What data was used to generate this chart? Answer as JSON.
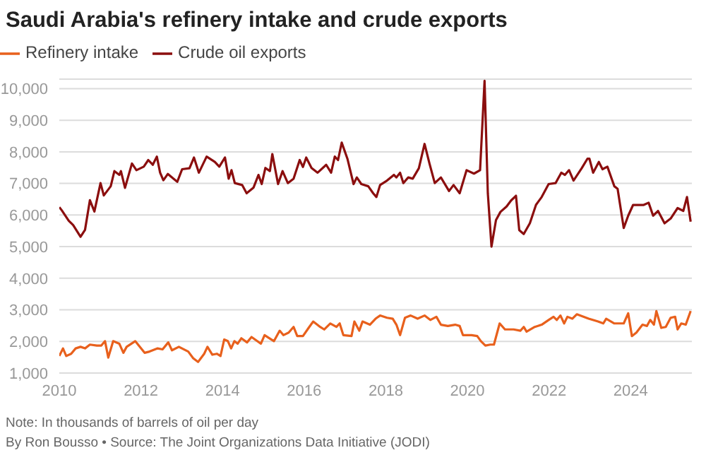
{
  "chart_data": {
    "type": "line",
    "title": "Saudi Arabia's refinery intake and crude exports",
    "xlim": [
      2010,
      2025.5
    ],
    "xticks": [
      2010,
      2012,
      2014,
      2016,
      2018,
      2020,
      2022,
      2024
    ],
    "ylim": [
      1000,
      10300
    ],
    "yticks": [
      {
        "value": 1000,
        "label": "1,000"
      },
      {
        "value": 2000,
        "label": "2,000"
      },
      {
        "value": 3000,
        "label": "3,000"
      },
      {
        "value": 4000,
        "label": "4,000"
      },
      {
        "value": 5000,
        "label": "5,000"
      },
      {
        "value": 6000,
        "label": "6,000"
      },
      {
        "value": 7000,
        "label": "7,000"
      },
      {
        "value": 8000,
        "label": "8,000"
      },
      {
        "value": 9000,
        "label": "9,000"
      },
      {
        "value": 10000,
        "label": "10,000"
      }
    ],
    "grid": "y",
    "legend": "top left",
    "marker": "none",
    "line_style": "solid",
    "series": [
      {
        "name": "Refinery intake",
        "color": "#e8601c",
        "x": [
          2010.0,
          2010.09,
          2010.17,
          2010.29,
          2010.4,
          2010.52,
          2010.63,
          2010.75,
          2010.92,
          2011.03,
          2011.12,
          2011.2,
          2011.32,
          2011.47,
          2011.57,
          2011.65,
          2011.86,
          2012.09,
          2012.21,
          2012.41,
          2012.53,
          2012.67,
          2012.76,
          2012.93,
          2013.16,
          2013.28,
          2013.4,
          2013.55,
          2013.63,
          2013.75,
          2013.86,
          2013.95,
          2014.04,
          2014.13,
          2014.21,
          2014.29,
          2014.37,
          2014.46,
          2014.6,
          2014.71,
          2014.85,
          2014.94,
          2015.03,
          2015.15,
          2015.26,
          2015.4,
          2015.49,
          2015.62,
          2015.74,
          2015.83,
          2015.97,
          2016.11,
          2016.22,
          2016.37,
          2016.49,
          2016.64,
          2016.79,
          2016.87,
          2016.96,
          2017.16,
          2017.23,
          2017.35,
          2017.43,
          2017.61,
          2017.75,
          2017.86,
          2018.03,
          2018.17,
          2018.26,
          2018.35,
          2018.47,
          2018.61,
          2018.78,
          2018.95,
          2019.09,
          2019.24,
          2019.35,
          2019.52,
          2019.7,
          2019.81,
          2019.89,
          2020.1,
          2020.24,
          2020.33,
          2020.44,
          2020.56,
          2020.65,
          2020.79,
          2020.92,
          2021.13,
          2021.3,
          2021.38,
          2021.45,
          2021.65,
          2021.82,
          2021.99,
          2022.11,
          2022.19,
          2022.28,
          2022.37,
          2022.45,
          2022.57,
          2022.68,
          2022.97,
          2023.2,
          2023.33,
          2023.4,
          2023.6,
          2023.83,
          2023.94,
          2024.03,
          2024.14,
          2024.29,
          2024.4,
          2024.48,
          2024.57,
          2024.63,
          2024.75,
          2024.86,
          2024.98,
          2025.09,
          2025.15,
          2025.24,
          2025.35,
          2025.47
        ],
        "values": [
          1540,
          1780,
          1540,
          1610,
          1780,
          1830,
          1780,
          1900,
          1870,
          1870,
          2010,
          1490,
          2010,
          1930,
          1640,
          1830,
          2010,
          1640,
          1680,
          1780,
          1750,
          1970,
          1720,
          1830,
          1680,
          1470,
          1350,
          1610,
          1830,
          1580,
          1610,
          1540,
          2060,
          2010,
          1780,
          2010,
          1930,
          2100,
          1970,
          2140,
          2010,
          1930,
          2200,
          2100,
          2010,
          2340,
          2200,
          2280,
          2460,
          2170,
          2170,
          2430,
          2630,
          2480,
          2380,
          2570,
          2460,
          2570,
          2200,
          2170,
          2630,
          2340,
          2630,
          2530,
          2720,
          2820,
          2750,
          2720,
          2530,
          2200,
          2750,
          2820,
          2720,
          2820,
          2680,
          2780,
          2530,
          2490,
          2530,
          2490,
          2200,
          2200,
          2170,
          2010,
          1870,
          1900,
          1900,
          2570,
          2380,
          2380,
          2340,
          2460,
          2310,
          2460,
          2530,
          2680,
          2780,
          2680,
          2820,
          2570,
          2780,
          2720,
          2860,
          2720,
          2630,
          2570,
          2720,
          2570,
          2570,
          2890,
          2170,
          2280,
          2530,
          2490,
          2680,
          2530,
          2960,
          2430,
          2460,
          2750,
          2780,
          2380,
          2570,
          2530,
          2960
        ]
      },
      {
        "name": "Crude oil exports",
        "color": "#8b0e0e",
        "x": [
          2010.0,
          2010.06,
          2010.23,
          2010.34,
          2010.52,
          2010.63,
          2010.75,
          2010.86,
          2011.01,
          2011.09,
          2011.26,
          2011.35,
          2011.47,
          2011.51,
          2011.61,
          2011.78,
          2011.89,
          2012.07,
          2012.18,
          2012.29,
          2012.39,
          2012.47,
          2012.55,
          2012.66,
          2012.89,
          2013.01,
          2013.19,
          2013.3,
          2013.42,
          2013.61,
          2013.81,
          2013.92,
          2014.06,
          2014.15,
          2014.22,
          2014.3,
          2014.48,
          2014.59,
          2014.76,
          2014.88,
          2014.96,
          2015.05,
          2015.16,
          2015.22,
          2015.36,
          2015.47,
          2015.6,
          2015.74,
          2015.89,
          2015.97,
          2016.05,
          2016.18,
          2016.33,
          2016.54,
          2016.66,
          2016.75,
          2016.83,
          2016.92,
          2017.06,
          2017.21,
          2017.29,
          2017.4,
          2017.57,
          2017.69,
          2017.77,
          2017.86,
          2018.03,
          2018.2,
          2018.26,
          2018.35,
          2018.43,
          2018.55,
          2018.66,
          2018.81,
          2018.95,
          2019.07,
          2019.2,
          2019.35,
          2019.55,
          2019.66,
          2019.81,
          2019.98,
          2020.16,
          2020.31,
          2020.42,
          2020.5,
          2020.59,
          2020.7,
          2020.81,
          2020.96,
          2021.07,
          2021.19,
          2021.27,
          2021.38,
          2021.53,
          2021.68,
          2021.82,
          2021.99,
          2022.16,
          2022.3,
          2022.39,
          2022.49,
          2022.6,
          2022.8,
          2022.94,
          2022.99,
          2023.08,
          2023.22,
          2023.31,
          2023.43,
          2023.6,
          2023.68,
          2023.83,
          2023.94,
          2024.06,
          2024.32,
          2024.44,
          2024.55,
          2024.67,
          2024.83,
          2024.98,
          2025.15,
          2025.29,
          2025.38,
          2025.47
        ],
        "values": [
          6250,
          6150,
          5820,
          5680,
          5310,
          5530,
          6470,
          6110,
          7010,
          6620,
          6910,
          7390,
          7270,
          7390,
          6860,
          7630,
          7420,
          7530,
          7740,
          7590,
          7850,
          7340,
          7100,
          7300,
          7050,
          7450,
          7480,
          7820,
          7340,
          7850,
          7680,
          7530,
          7820,
          7150,
          7420,
          7010,
          6950,
          6690,
          6870,
          7270,
          6980,
          7490,
          7390,
          7930,
          6980,
          7390,
          7010,
          7150,
          7740,
          7520,
          7820,
          7490,
          7340,
          7590,
          7340,
          7850,
          7740,
          8290,
          7780,
          6980,
          7190,
          6980,
          6910,
          6690,
          6570,
          6950,
          7090,
          7270,
          7190,
          7340,
          7010,
          7190,
          7150,
          7480,
          8250,
          7630,
          7010,
          7190,
          6760,
          6950,
          6690,
          7420,
          7310,
          7420,
          10250,
          6690,
          5000,
          5840,
          6100,
          6270,
          6460,
          6610,
          5520,
          5400,
          5740,
          6320,
          6570,
          6980,
          7010,
          7340,
          7270,
          7420,
          7090,
          7480,
          7780,
          7780,
          7340,
          7680,
          7450,
          7530,
          6910,
          6830,
          5590,
          5980,
          6320,
          6320,
          6390,
          5980,
          6130,
          5740,
          5890,
          6220,
          6130,
          6570,
          5790
        ]
      }
    ],
    "annotations": [
      "Note: In thousands of barrels of oil per day",
      "By Ron Bousso • Source: The Joint Organizations Data Initiative (JODI)"
    ]
  }
}
